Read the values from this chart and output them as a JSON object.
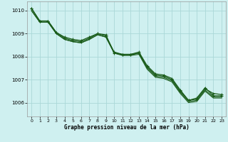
{
  "title": "Graphe pression niveau de la mer (hPa)",
  "background_color": "#cff0f0",
  "grid_color": "#aad8d8",
  "line_color": "#1a5c1a",
  "xlim": [
    -0.5,
    23.5
  ],
  "ylim": [
    1005.4,
    1010.4
  ],
  "yticks": [
    1006,
    1007,
    1008,
    1009,
    1010
  ],
  "xticks": [
    0,
    1,
    2,
    3,
    4,
    5,
    6,
    7,
    8,
    9,
    10,
    11,
    12,
    13,
    14,
    15,
    16,
    17,
    18,
    19,
    20,
    21,
    22,
    23
  ],
  "series": [
    [
      1010.1,
      1009.55,
      1009.55,
      1009.05,
      1008.85,
      1008.75,
      1008.7,
      1008.85,
      1009.0,
      1008.95,
      1008.15,
      1008.1,
      1008.1,
      1008.15,
      1007.55,
      1007.2,
      1007.15,
      1007.0,
      1006.5,
      1006.1,
      1006.15,
      1006.6,
      1006.4,
      1006.35
    ],
    [
      1010.1,
      1009.55,
      1009.55,
      1009.05,
      1008.8,
      1008.7,
      1008.65,
      1008.8,
      1009.0,
      1008.9,
      1008.2,
      1008.1,
      1008.1,
      1008.2,
      1007.6,
      1007.25,
      1007.2,
      1007.05,
      1006.55,
      1006.1,
      1006.2,
      1006.65,
      1006.3,
      1006.3
    ],
    [
      1010.0,
      1009.5,
      1009.5,
      1009.0,
      1008.75,
      1008.65,
      1008.6,
      1008.75,
      1008.95,
      1008.85,
      1008.18,
      1008.08,
      1008.08,
      1008.15,
      1007.5,
      1007.15,
      1007.1,
      1006.95,
      1006.45,
      1006.05,
      1006.1,
      1006.55,
      1006.25,
      1006.25
    ],
    [
      1010.0,
      1009.5,
      1009.5,
      1009.0,
      1008.75,
      1008.65,
      1008.6,
      1008.75,
      1008.95,
      1008.85,
      1008.15,
      1008.05,
      1008.05,
      1008.1,
      1007.45,
      1007.1,
      1007.05,
      1006.9,
      1006.4,
      1006.0,
      1006.05,
      1006.5,
      1006.2,
      1006.2
    ]
  ],
  "markers": [
    [
      0,
      3,
      8,
      9,
      12,
      13,
      14,
      15,
      16,
      17,
      19,
      20,
      21,
      22,
      23
    ],
    [
      0,
      3,
      8,
      9,
      12,
      13,
      14,
      15,
      16,
      17,
      19,
      20,
      21,
      22,
      23
    ],
    [],
    []
  ]
}
